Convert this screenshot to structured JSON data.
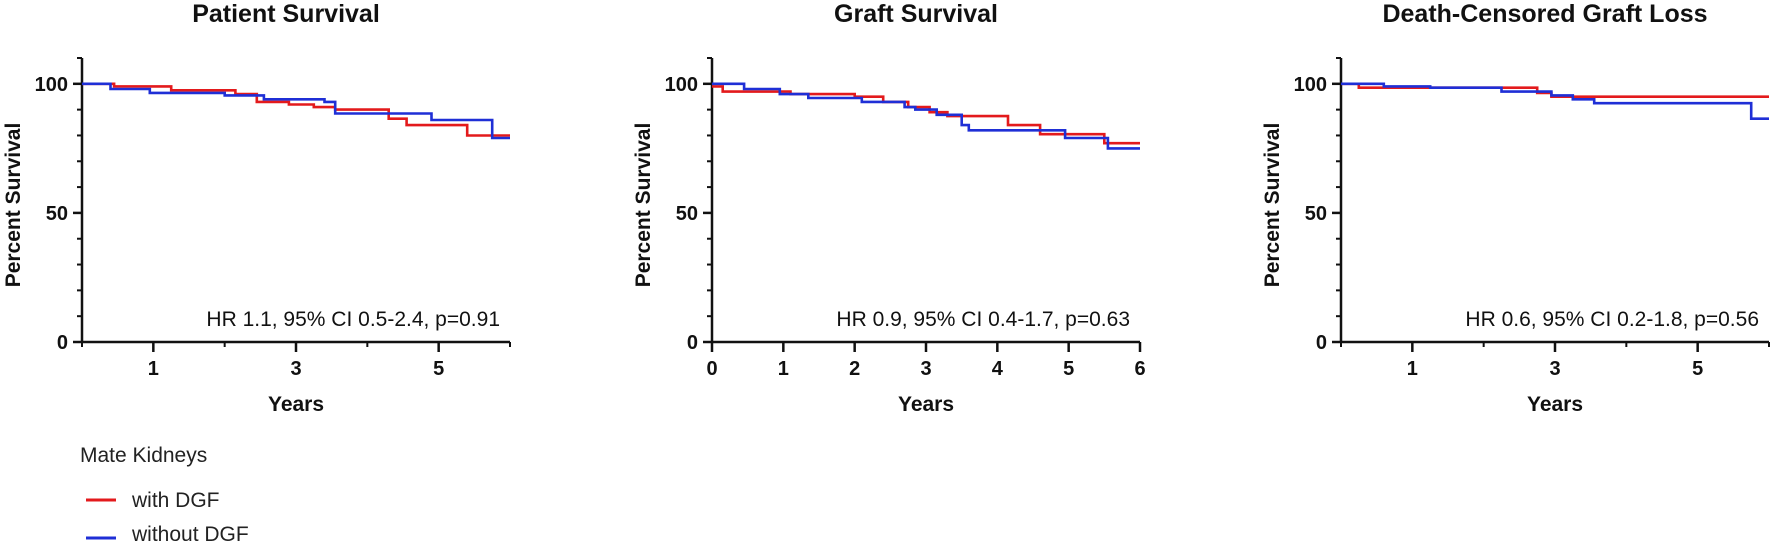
{
  "legend": {
    "title": "Mate Kidneys",
    "items": [
      {
        "label": "with DGF",
        "color": "#e31a1c"
      },
      {
        "label": "without DGF",
        "color": "#1f2fd6"
      }
    ]
  },
  "chart_data": [
    {
      "type": "line",
      "title": "Patient Survival",
      "xlabel": "Years",
      "ylabel": "Percent Survival",
      "xlim": [
        0,
        6
      ],
      "ylim": [
        0,
        110
      ],
      "xticks": [
        1,
        3,
        5
      ],
      "yticks": [
        0,
        50,
        100
      ],
      "annotation": "HR 1.1, 95% CI 0.5-2.4, p=0.91",
      "step": true,
      "series": [
        {
          "name": "with DGF",
          "color": "#e31a1c",
          "points": [
            [
              0,
              100
            ],
            [
              0.45,
              99
            ],
            [
              1.25,
              97.5
            ],
            [
              2.15,
              96
            ],
            [
              2.45,
              93
            ],
            [
              2.9,
              92
            ],
            [
              3.25,
              91
            ],
            [
              3.55,
              90
            ],
            [
              4.3,
              86.5
            ],
            [
              4.55,
              84
            ],
            [
              5.4,
              80
            ],
            [
              6,
              80
            ]
          ]
        },
        {
          "name": "without DGF",
          "color": "#1f2fd6",
          "points": [
            [
              0,
              100
            ],
            [
              0.4,
              98
            ],
            [
              0.95,
              96.5
            ],
            [
              2.0,
              95.5
            ],
            [
              2.55,
              94
            ],
            [
              3.4,
              93
            ],
            [
              3.55,
              88.5
            ],
            [
              4.55,
              88.5
            ],
            [
              4.9,
              86
            ],
            [
              5.75,
              79
            ],
            [
              6,
              79
            ]
          ]
        }
      ]
    },
    {
      "type": "line",
      "title": "Graft Survival",
      "xlabel": "Years",
      "ylabel": "Percent Survival",
      "xlim": [
        0,
        6
      ],
      "ylim": [
        0,
        110
      ],
      "xticks": [
        0,
        1,
        2,
        3,
        4,
        5,
        6
      ],
      "yticks": [
        0,
        50,
        100
      ],
      "annotation": "HR 0.9, 95% CI 0.4-1.7, p=0.63",
      "step": true,
      "series": [
        {
          "name": "with DGF",
          "color": "#e31a1c",
          "points": [
            [
              0,
              99
            ],
            [
              0.15,
              97
            ],
            [
              1.1,
              96
            ],
            [
              2.0,
              95
            ],
            [
              2.4,
              93
            ],
            [
              2.75,
              91
            ],
            [
              3.05,
              89
            ],
            [
              3.3,
              87.5
            ],
            [
              4.15,
              84
            ],
            [
              4.6,
              80.5
            ],
            [
              5.5,
              77
            ],
            [
              6,
              77
            ]
          ]
        },
        {
          "name": "without DGF",
          "color": "#1f2fd6",
          "points": [
            [
              0,
              100
            ],
            [
              0.45,
              98
            ],
            [
              0.95,
              96
            ],
            [
              1.35,
              94.5
            ],
            [
              2.1,
              93
            ],
            [
              2.7,
              91
            ],
            [
              2.85,
              90
            ],
            [
              3.15,
              88
            ],
            [
              3.5,
              84
            ],
            [
              3.6,
              82
            ],
            [
              4.95,
              79
            ],
            [
              5.55,
              75
            ],
            [
              6,
              75
            ]
          ]
        }
      ]
    },
    {
      "type": "line",
      "title": "Death-Censored Graft Loss",
      "xlabel": "Years",
      "ylabel": "Percent Survival",
      "xlim": [
        0,
        6
      ],
      "ylim": [
        0,
        110
      ],
      "xticks": [
        1,
        3,
        5
      ],
      "yticks": [
        0,
        50,
        100
      ],
      "annotation": "HR 0.6, 95% CI 0.2-1.8, p=0.56",
      "step": true,
      "series": [
        {
          "name": "with DGF",
          "color": "#e31a1c",
          "points": [
            [
              0,
              100
            ],
            [
              0.25,
              98.5
            ],
            [
              2.25,
              98.5
            ],
            [
              2.75,
              96.5
            ],
            [
              2.95,
              95
            ],
            [
              6,
              95
            ]
          ]
        },
        {
          "name": "without DGF",
          "color": "#1f2fd6",
          "points": [
            [
              0,
              100
            ],
            [
              0.6,
              99
            ],
            [
              1.25,
              98.5
            ],
            [
              2.25,
              97
            ],
            [
              2.95,
              95.5
            ],
            [
              3.25,
              94
            ],
            [
              3.55,
              92.5
            ],
            [
              5.75,
              86.5
            ],
            [
              6,
              86.5
            ]
          ]
        }
      ]
    }
  ]
}
